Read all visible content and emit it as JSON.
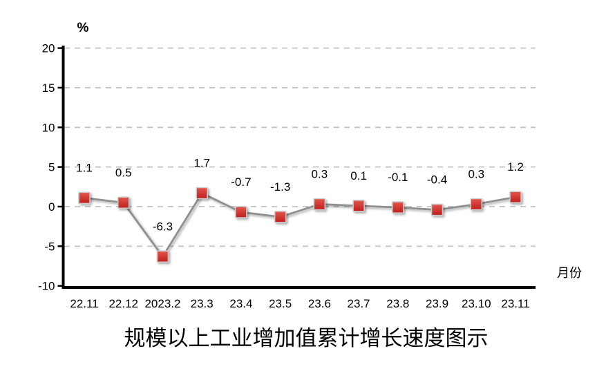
{
  "chart_data": {
    "type": "line",
    "title": "规模以上工业增加值累计增长速度图示",
    "ylabel": "%",
    "xlabel": "月份",
    "categories": [
      "22.11",
      "22.12",
      "2023.2",
      "23.3",
      "23.4",
      "23.5",
      "23.6",
      "23.7",
      "23.8",
      "23.9",
      "23.10",
      "23.11"
    ],
    "values": [
      1.1,
      0.5,
      -6.3,
      1.7,
      -0.7,
      -1.3,
      0.3,
      0.1,
      -0.1,
      -0.4,
      0.3,
      1.2
    ],
    "data_labels": [
      "1.1",
      "0.5",
      "-6.3",
      "1.7",
      "-0.7",
      "-1.3",
      "0.3",
      "0.1",
      "-0.1",
      "-0.4",
      "0.3",
      "1.2"
    ],
    "ylim": [
      -10,
      20
    ],
    "yticks": [
      -10,
      -5,
      0,
      5,
      10,
      15,
      20
    ],
    "grid": "horizontal-dashed",
    "legend": "none",
    "marker": "red-square",
    "colors": {
      "line": "#8f8f8f",
      "marker_top": "#e2574d",
      "marker_bottom": "#c01f1d",
      "marker_stroke": "#cccccc",
      "grid": "#c3c3c3",
      "axis": "#000000",
      "text": "#000000"
    }
  }
}
